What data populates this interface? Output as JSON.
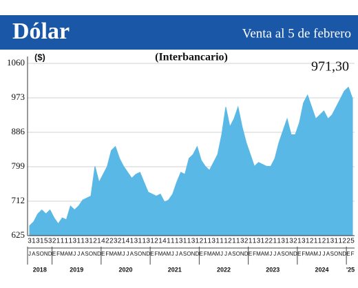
{
  "chart_data": {
    "type": "area",
    "title": "Dólar",
    "subtitle": "Venta al 5 de febrero",
    "y_unit": "($)",
    "annotation": "(Interbancario)",
    "color": "#5ab8e6",
    "x": [
      "2018-07",
      "2018-08",
      "2018-09",
      "2018-10",
      "2018-11",
      "2018-12",
      "2019-01",
      "2019-02",
      "2019-03",
      "2019-04",
      "2019-05",
      "2019-06",
      "2019-07",
      "2019-08",
      "2019-09",
      "2019-10",
      "2019-11",
      "2019-12",
      "2020-01",
      "2020-02",
      "2020-03",
      "2020-04",
      "2020-05",
      "2020-06",
      "2020-07",
      "2020-08",
      "2020-09",
      "2020-10",
      "2020-11",
      "2020-12",
      "2021-01",
      "2021-02",
      "2021-03",
      "2021-04",
      "2021-05",
      "2021-06",
      "2021-07",
      "2021-08",
      "2021-09",
      "2021-10",
      "2021-11",
      "2021-12",
      "2022-01",
      "2022-02",
      "2022-03",
      "2022-04",
      "2022-05",
      "2022-06",
      "2022-07",
      "2022-08",
      "2022-09",
      "2022-10",
      "2022-11",
      "2022-12",
      "2023-01",
      "2023-02",
      "2023-03",
      "2023-04",
      "2023-05",
      "2023-06",
      "2023-07",
      "2023-08",
      "2023-09",
      "2023-10",
      "2023-11",
      "2023-12",
      "2024-01",
      "2024-02",
      "2024-03",
      "2024-04",
      "2024-05",
      "2024-06",
      "2024-07",
      "2024-08",
      "2024-09",
      "2024-10",
      "2024-11",
      "2024-12",
      "2025-01",
      "2025-02"
    ],
    "values": [
      650,
      660,
      680,
      690,
      680,
      690,
      670,
      655,
      670,
      665,
      700,
      690,
      700,
      715,
      720,
      725,
      800,
      760,
      780,
      800,
      840,
      850,
      820,
      800,
      785,
      770,
      780,
      785,
      760,
      735,
      730,
      725,
      730,
      710,
      715,
      730,
      760,
      785,
      780,
      820,
      830,
      850,
      815,
      800,
      790,
      810,
      830,
      880,
      950,
      900,
      920,
      950,
      900,
      860,
      830,
      800,
      810,
      805,
      800,
      800,
      820,
      860,
      890,
      920,
      880,
      880,
      910,
      960,
      980,
      950,
      920,
      930,
      940,
      920,
      930,
      950,
      970,
      990,
      1000,
      971.3
    ],
    "value_labels": [
      null,
      null,
      null,
      null,
      null,
      null,
      null,
      null,
      null,
      null,
      null,
      null,
      null,
      null,
      null,
      null,
      null,
      null,
      null,
      null,
      null,
      null,
      null,
      null,
      null,
      null,
      null,
      null,
      null,
      null,
      null,
      null,
      null,
      null,
      null,
      null,
      null,
      null,
      null,
      null,
      null,
      null,
      null,
      null,
      null,
      null,
      null,
      null,
      null,
      null,
      null,
      null,
      null,
      null,
      null,
      null,
      null,
      null,
      null,
      null,
      null,
      null,
      null,
      null,
      null,
      null,
      null,
      null,
      null,
      null,
      null,
      null,
      null,
      null,
      null,
      null,
      null,
      null,
      null,
      "971,30"
    ],
    "day_labels": [
      "3",
      "1",
      "3",
      "1",
      "5",
      "3",
      "2",
      "1",
      "1",
      "1",
      "1",
      "3",
      "1",
      "1",
      "3",
      "1",
      "2",
      "1",
      "4",
      "2",
      "2",
      "3",
      "2",
      "1",
      "4",
      "1",
      "3",
      "1",
      "1",
      "3",
      "1",
      "2",
      "1",
      "4",
      "1",
      "1",
      "1",
      "3",
      "1",
      "1",
      "3",
      "1",
      "2",
      "1",
      "1",
      "3",
      "1",
      "1",
      "1",
      "2",
      "1",
      "1",
      "3",
      "2",
      "1",
      "1",
      "3",
      "1",
      "2",
      "2",
      "1",
      "1",
      "3",
      "1",
      "3",
      "2",
      "1",
      "3",
      "1",
      "2",
      "1",
      "1",
      "2",
      "1",
      "3",
      "1",
      "1",
      "2",
      "2",
      "5"
    ],
    "month_labels": [
      "J",
      "A",
      "S",
      "O",
      "N",
      "D",
      "E",
      "F",
      "M",
      "A",
      "M",
      "J",
      "J",
      "A",
      "S",
      "O",
      "N",
      "D",
      "E",
      "F",
      "M",
      "A",
      "M",
      "J",
      "J",
      "A",
      "S",
      "O",
      "N",
      "D",
      "E",
      "F",
      "M",
      "A",
      "M",
      "J",
      "J",
      "A",
      "S",
      "O",
      "N",
      "D",
      "E",
      "F",
      "M",
      "A",
      "M",
      "J",
      "J",
      "A",
      "S",
      "O",
      "N",
      "D",
      "E",
      "F",
      "M",
      "A",
      "M",
      "J",
      "J",
      "A",
      "S",
      "O",
      "N",
      "D",
      "E",
      "F",
      "M",
      "A",
      "M",
      "J",
      "J",
      "A",
      "S",
      "O",
      "N",
      "D",
      "E",
      "F"
    ],
    "year_labels": [
      "2018",
      "2019",
      "2020",
      "2021",
      "2022",
      "2023",
      "2024",
      "'25"
    ],
    "ylim": [
      625,
      1060
    ],
    "yticks": [
      625,
      712,
      799,
      886,
      973,
      1060
    ],
    "grid": true
  }
}
